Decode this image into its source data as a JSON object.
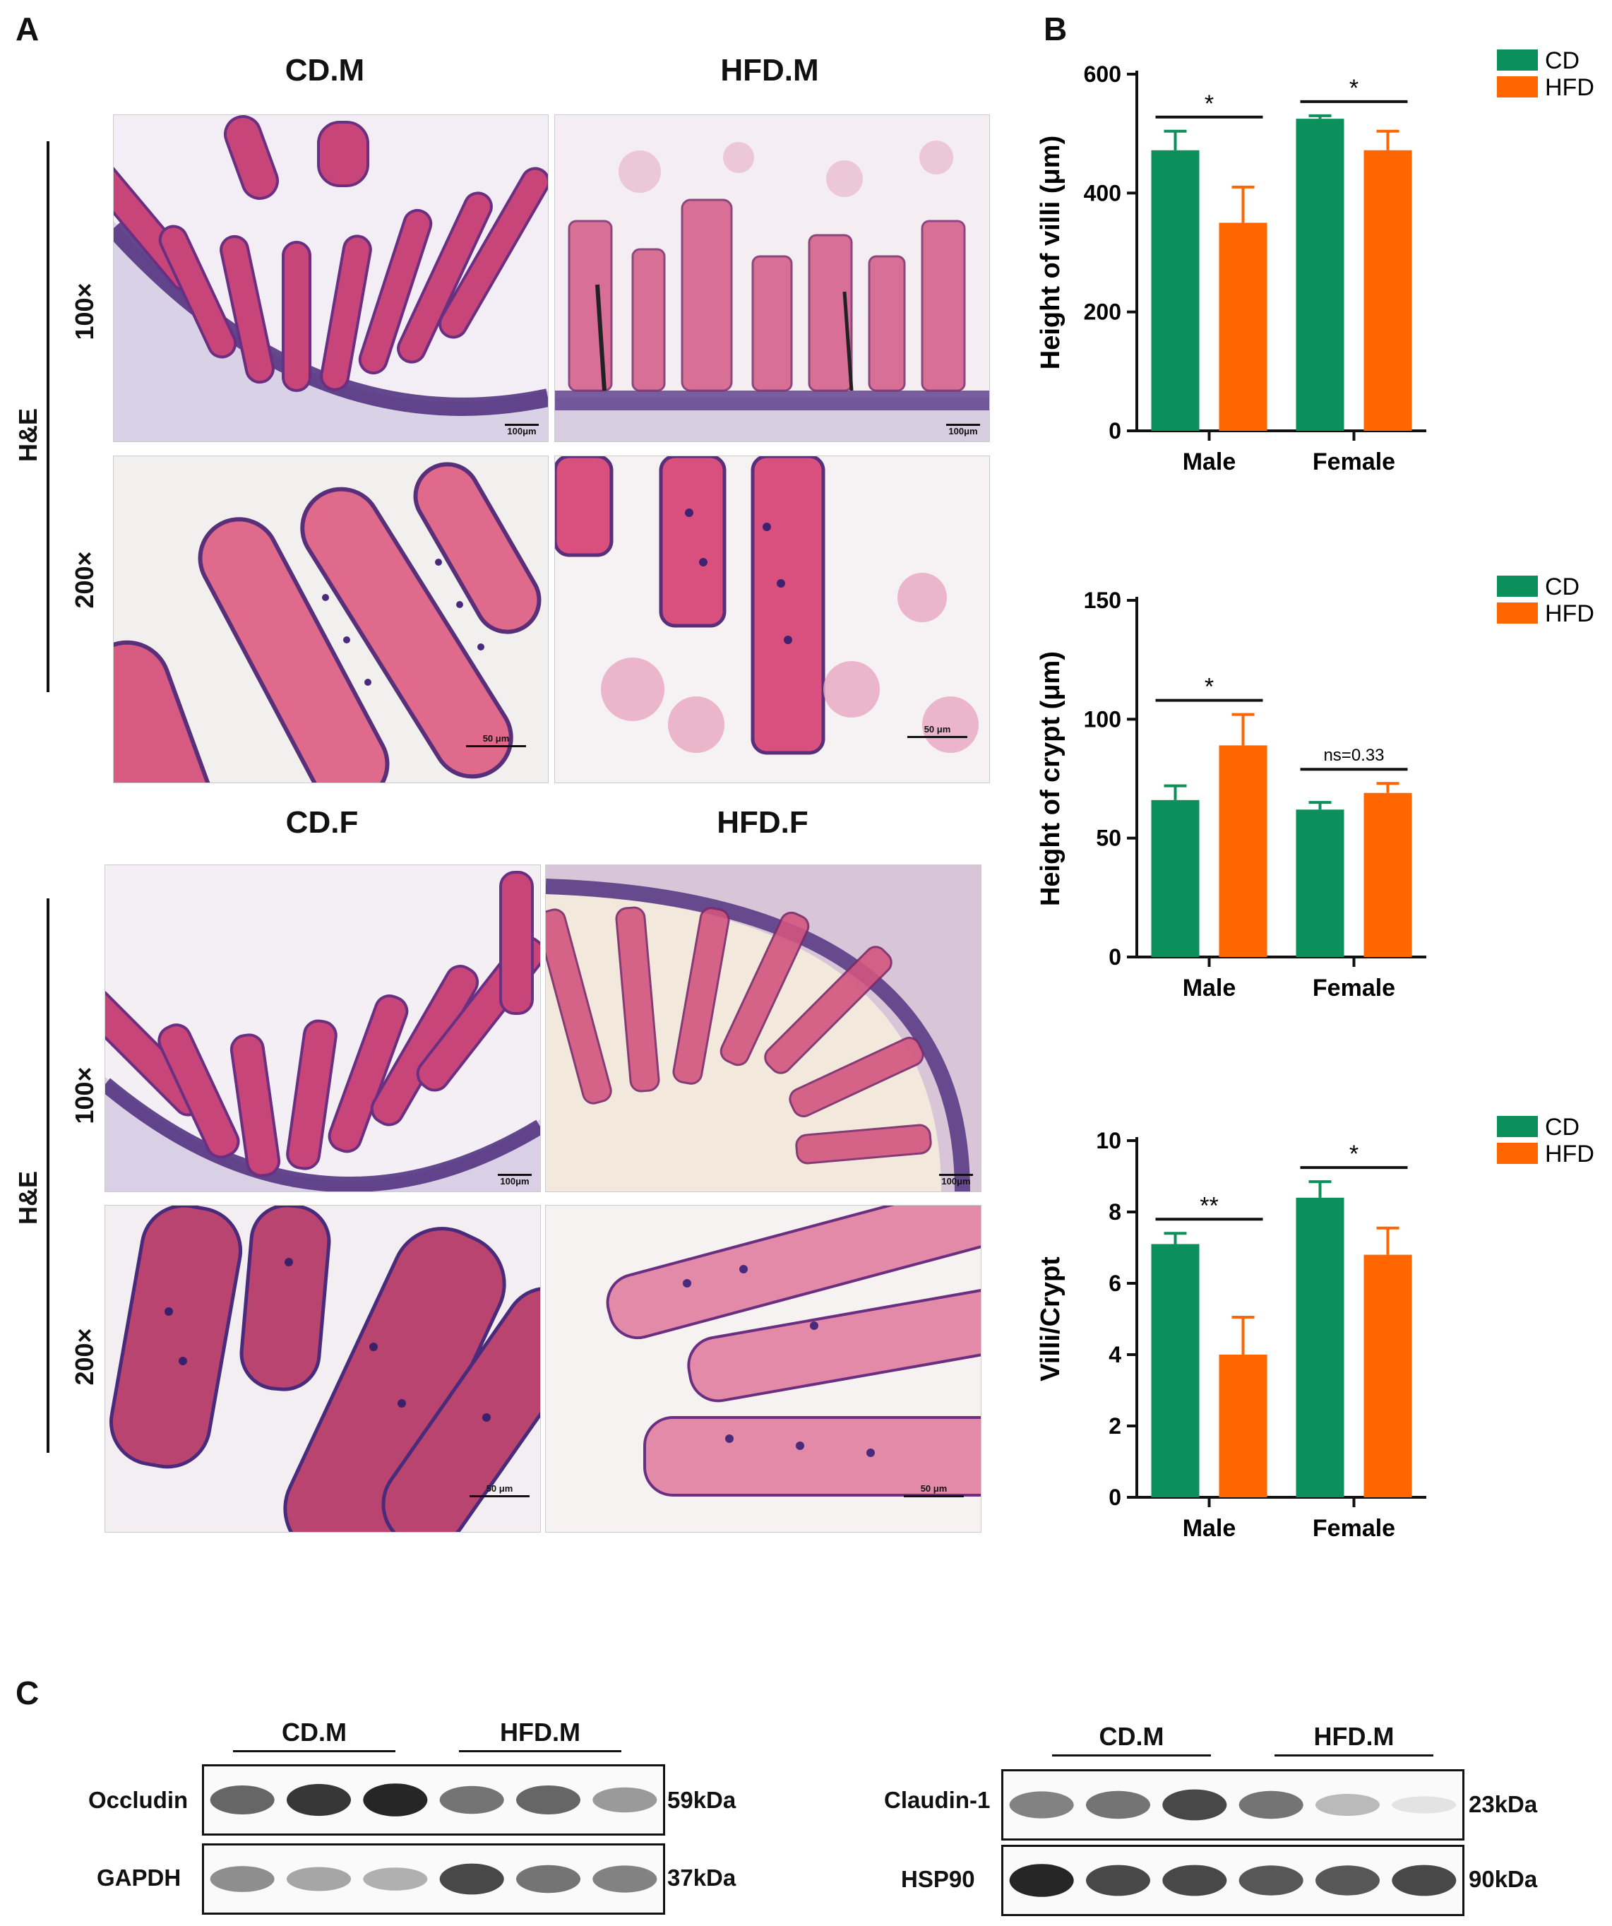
{
  "panels": {
    "a": "A",
    "b": "B",
    "c": "C"
  },
  "histology": {
    "top_titles": [
      "CD.M",
      "HFD.M"
    ],
    "bottom_titles": [
      "CD.F",
      "HFD.F"
    ],
    "stain_label": "H&E",
    "mag_low": "100×",
    "mag_high": "200×",
    "scale_100": "100μm",
    "scale_50": "50 μm"
  },
  "colors": {
    "cd": "#0b8f5b",
    "hfd": "#ff6600",
    "tissue": "#c8457a",
    "nuclei": "#4a2a7a"
  },
  "chart_data": [
    {
      "type": "bar",
      "title": "",
      "ylabel": "Height of villi (μm)",
      "categories": [
        "Male",
        "Female"
      ],
      "ylim": [
        0,
        600
      ],
      "yticks": [
        0,
        200,
        400,
        600
      ],
      "series": [
        {
          "name": "CD",
          "values": [
            472,
            525
          ],
          "errors": [
            32,
            5
          ]
        },
        {
          "name": "HFD",
          "values": [
            350,
            472
          ],
          "errors": [
            60,
            32
          ]
        }
      ],
      "significance": [
        "*",
        "*"
      ],
      "legend": [
        "CD",
        "HFD"
      ]
    },
    {
      "type": "bar",
      "title": "",
      "ylabel": "Height of crypt (μm)",
      "categories": [
        "Male",
        "Female"
      ],
      "ylim": [
        0,
        150
      ],
      "yticks": [
        0,
        50,
        100,
        150
      ],
      "series": [
        {
          "name": "CD",
          "values": [
            66,
            62
          ],
          "errors": [
            6,
            3
          ]
        },
        {
          "name": "HFD",
          "values": [
            89,
            69
          ],
          "errors": [
            13,
            4
          ]
        }
      ],
      "significance": [
        "*",
        "ns=0.33"
      ],
      "legend": [
        "CD",
        "HFD"
      ]
    },
    {
      "type": "bar",
      "title": "",
      "ylabel": "Villi/Crypt",
      "categories": [
        "Male",
        "Female"
      ],
      "ylim": [
        0,
        10
      ],
      "yticks": [
        0,
        2,
        4,
        6,
        8,
        10
      ],
      "series": [
        {
          "name": "CD",
          "values": [
            7.1,
            8.4
          ],
          "errors": [
            0.3,
            0.45
          ]
        },
        {
          "name": "HFD",
          "values": [
            4.0,
            6.8
          ],
          "errors": [
            1.05,
            0.75
          ]
        }
      ],
      "significance": [
        "**",
        "*"
      ],
      "legend": [
        "CD",
        "HFD"
      ]
    }
  ],
  "blots": {
    "left": {
      "groups": [
        "CD.M",
        "HFD.M"
      ],
      "rows": [
        {
          "protein": "Occludin",
          "size": "59kDa",
          "intensity": [
            0.75,
            0.9,
            0.95,
            0.7,
            0.75,
            0.55
          ]
        },
        {
          "protein": "GAPDH",
          "size": "37kDa",
          "intensity": [
            0.6,
            0.5,
            0.45,
            0.85,
            0.7,
            0.65
          ]
        }
      ]
    },
    "right": {
      "groups": [
        "CD.M",
        "HFD.M"
      ],
      "rows": [
        {
          "protein": "Claudin-1",
          "size": "23kDa",
          "intensity": [
            0.65,
            0.7,
            0.85,
            0.7,
            0.4,
            0.15
          ]
        },
        {
          "protein": "HSP90",
          "size": "90kDa",
          "intensity": [
            0.95,
            0.85,
            0.85,
            0.8,
            0.8,
            0.85
          ]
        }
      ]
    }
  }
}
